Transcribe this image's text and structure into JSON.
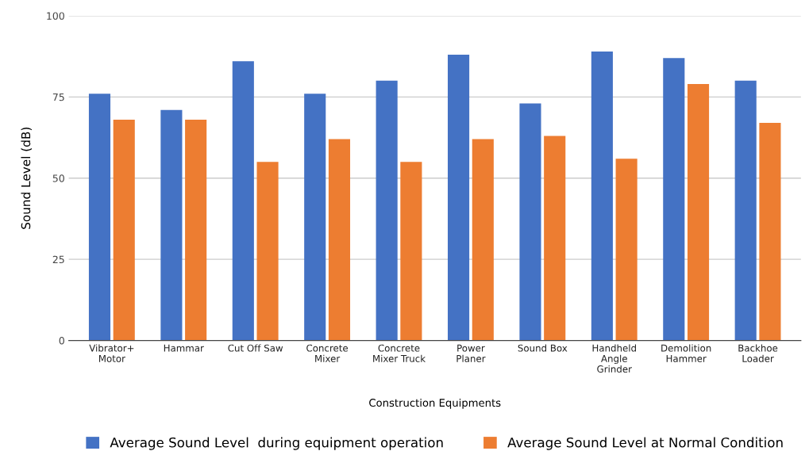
{
  "chart_data": {
    "type": "bar",
    "xlabel": "Construction Equipments",
    "ylabel": "Sound Level (dB)",
    "categories": [
      "Vibrator+\nMotor",
      "Hammar",
      "Cut Off Saw",
      "Concrete\nMixer",
      "Concrete\nMixer Truck",
      "Power\nPlaner",
      "Sound Box",
      "Handheld\nAngle\nGrinder",
      "Demolition\nHammer",
      "Backhoe\nLoader"
    ],
    "series": [
      {
        "name": "Average Sound Level  during equipment operation",
        "color": "#4472c4",
        "values": [
          76,
          71,
          86,
          76,
          80,
          88,
          73,
          89,
          87,
          80
        ]
      },
      {
        "name": "Average Sound Level at Normal Condition",
        "color": "#ed7d31",
        "values": [
          68,
          68,
          55,
          62,
          55,
          62,
          63,
          56,
          79,
          67
        ]
      }
    ],
    "ylim": [
      0,
      100
    ],
    "yticks": [
      0,
      25,
      50,
      75,
      100
    ],
    "grid": "y",
    "legend": "bottom"
  }
}
